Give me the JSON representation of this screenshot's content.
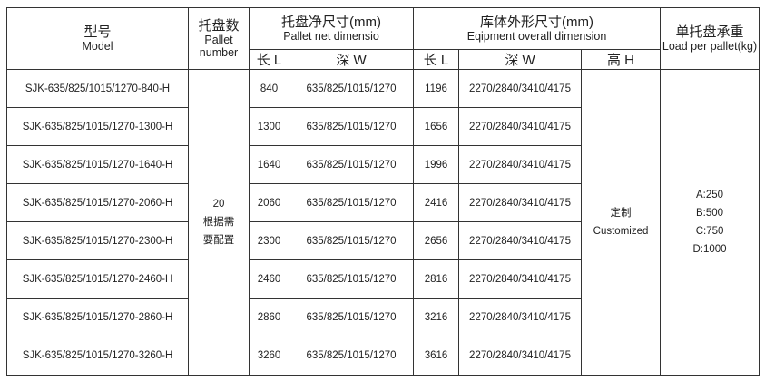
{
  "header": {
    "model_cn": "型号",
    "model_en": "Model",
    "pallet_cn": "托盘数",
    "pallet_en": "Pallet number",
    "net_cn": "托盘净尺寸(mm)",
    "net_en": "Pallet net dimensio",
    "overall_cn": "库体外形尺寸(mm)",
    "overall_en": "Eqipment overall dimension",
    "load_cn": "单托盘承重",
    "load_en": "Load per pallet(kg)",
    "len": "长 L",
    "depth": "深 W",
    "height": "高 H"
  },
  "pallet_number": "20",
  "pallet_note": "根据需要配置",
  "height_cn": "定制",
  "height_en": "Customized",
  "load": [
    "A:250",
    "B:500",
    "C:750",
    "D:1000"
  ],
  "rows": [
    {
      "model": "SJK-635/825/1015/1270-840-H",
      "net_l": "840",
      "net_w": "635/825/1015/1270",
      "ov_l": "1196",
      "ov_w": "2270/2840/3410/4175"
    },
    {
      "model": "SJK-635/825/1015/1270-1300-H",
      "net_l": "1300",
      "net_w": "635/825/1015/1270",
      "ov_l": "1656",
      "ov_w": "2270/2840/3410/4175"
    },
    {
      "model": "SJK-635/825/1015/1270-1640-H",
      "net_l": "1640",
      "net_w": "635/825/1015/1270",
      "ov_l": "1996",
      "ov_w": "2270/2840/3410/4175"
    },
    {
      "model": "SJK-635/825/1015/1270-2060-H",
      "net_l": "2060",
      "net_w": "635/825/1015/1270",
      "ov_l": "2416",
      "ov_w": "2270/2840/3410/4175"
    },
    {
      "model": "SJK-635/825/1015/1270-2300-H",
      "net_l": "2300",
      "net_w": "635/825/1015/1270",
      "ov_l": "2656",
      "ov_w": "2270/2840/3410/4175"
    },
    {
      "model": "SJK-635/825/1015/1270-2460-H",
      "net_l": "2460",
      "net_w": "635/825/1015/1270",
      "ov_l": "2816",
      "ov_w": "2270/2840/3410/4175"
    },
    {
      "model": "SJK-635/825/1015/1270-2860-H",
      "net_l": "2860",
      "net_w": "635/825/1015/1270",
      "ov_l": "3216",
      "ov_w": "2270/2840/3410/4175"
    },
    {
      "model": "SJK-635/825/1015/1270-3260-H",
      "net_l": "3260",
      "net_w": "635/825/1015/1270",
      "ov_l": "3616",
      "ov_w": "2270/2840/3410/4175"
    }
  ]
}
